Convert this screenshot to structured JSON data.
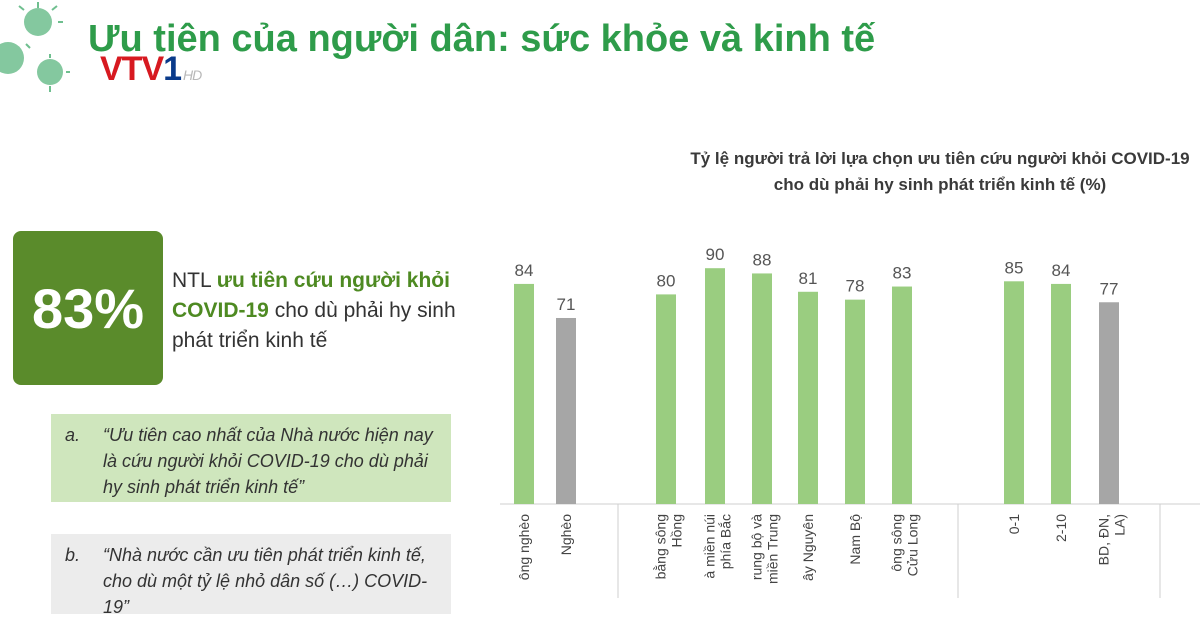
{
  "page_title": "Ưu tiên của người dân: sức khỏe và kinh tế",
  "logo": {
    "main": "VTV1",
    "suffix": "HD"
  },
  "highlight": {
    "value": "83%",
    "text_prefix": "NTL",
    "text_highlight": "ưu tiên cứu người khỏi COVID-19",
    "text_suffix": "cho dù phải hy sinh phát triển kinh tế"
  },
  "quotes": [
    {
      "letter": "a.",
      "text": "“Ưu tiên cao nhất của Nhà nước hiện nay là cứu người khỏi COVID-19 cho dù phải hy sinh phát triển kinh tế”"
    },
    {
      "letter": "b.",
      "text": "“Nhà nước cần ưu tiên phát triển kinh tế, cho dù một tỷ lệ nhỏ dân số (…) COVID-19”"
    }
  ],
  "colors": {
    "green_bar": "#9acd80",
    "gray_bar": "#a6a6a6",
    "title_green": "#2e9c4a",
    "box_green": "#5a8b2b"
  },
  "chart_data": {
    "type": "bar",
    "title_line1": "Tỷ lệ người trả lời lựa chọn ưu tiên cứu người khỏi COVID-19",
    "title_line2": "cho dù phải hy sinh phát triển kinh tế (%)",
    "ylim": [
      0,
      100
    ],
    "grid": false,
    "groups": [
      {
        "bars": [
          {
            "label": "ông nghèo",
            "value": 84,
            "color": "green"
          },
          {
            "label": "Nghèo",
            "value": 71,
            "color": "gray"
          }
        ]
      },
      {
        "bars": [
          {
            "label": "bằng sông Hồng",
            "value": 80,
            "color": "green"
          },
          {
            "label": "à miền núi phía Bắc",
            "value": 90,
            "color": "green"
          },
          {
            "label": "rung bộ và miền Trung",
            "value": 88,
            "color": "green"
          },
          {
            "label": "ây Nguyên",
            "value": 81,
            "color": "green"
          },
          {
            "label": "Nam Bộ",
            "value": 78,
            "color": "green"
          },
          {
            "label": "ông sông Cửu Long",
            "value": 83,
            "color": "green"
          }
        ]
      },
      {
        "bars": [
          {
            "label": "0-1",
            "value": 85,
            "color": "green"
          },
          {
            "label": "2-10",
            "value": 84,
            "color": "green"
          },
          {
            "label": "BD, ĐN, LA)",
            "value": 77,
            "color": "gray"
          }
        ]
      }
    ]
  }
}
